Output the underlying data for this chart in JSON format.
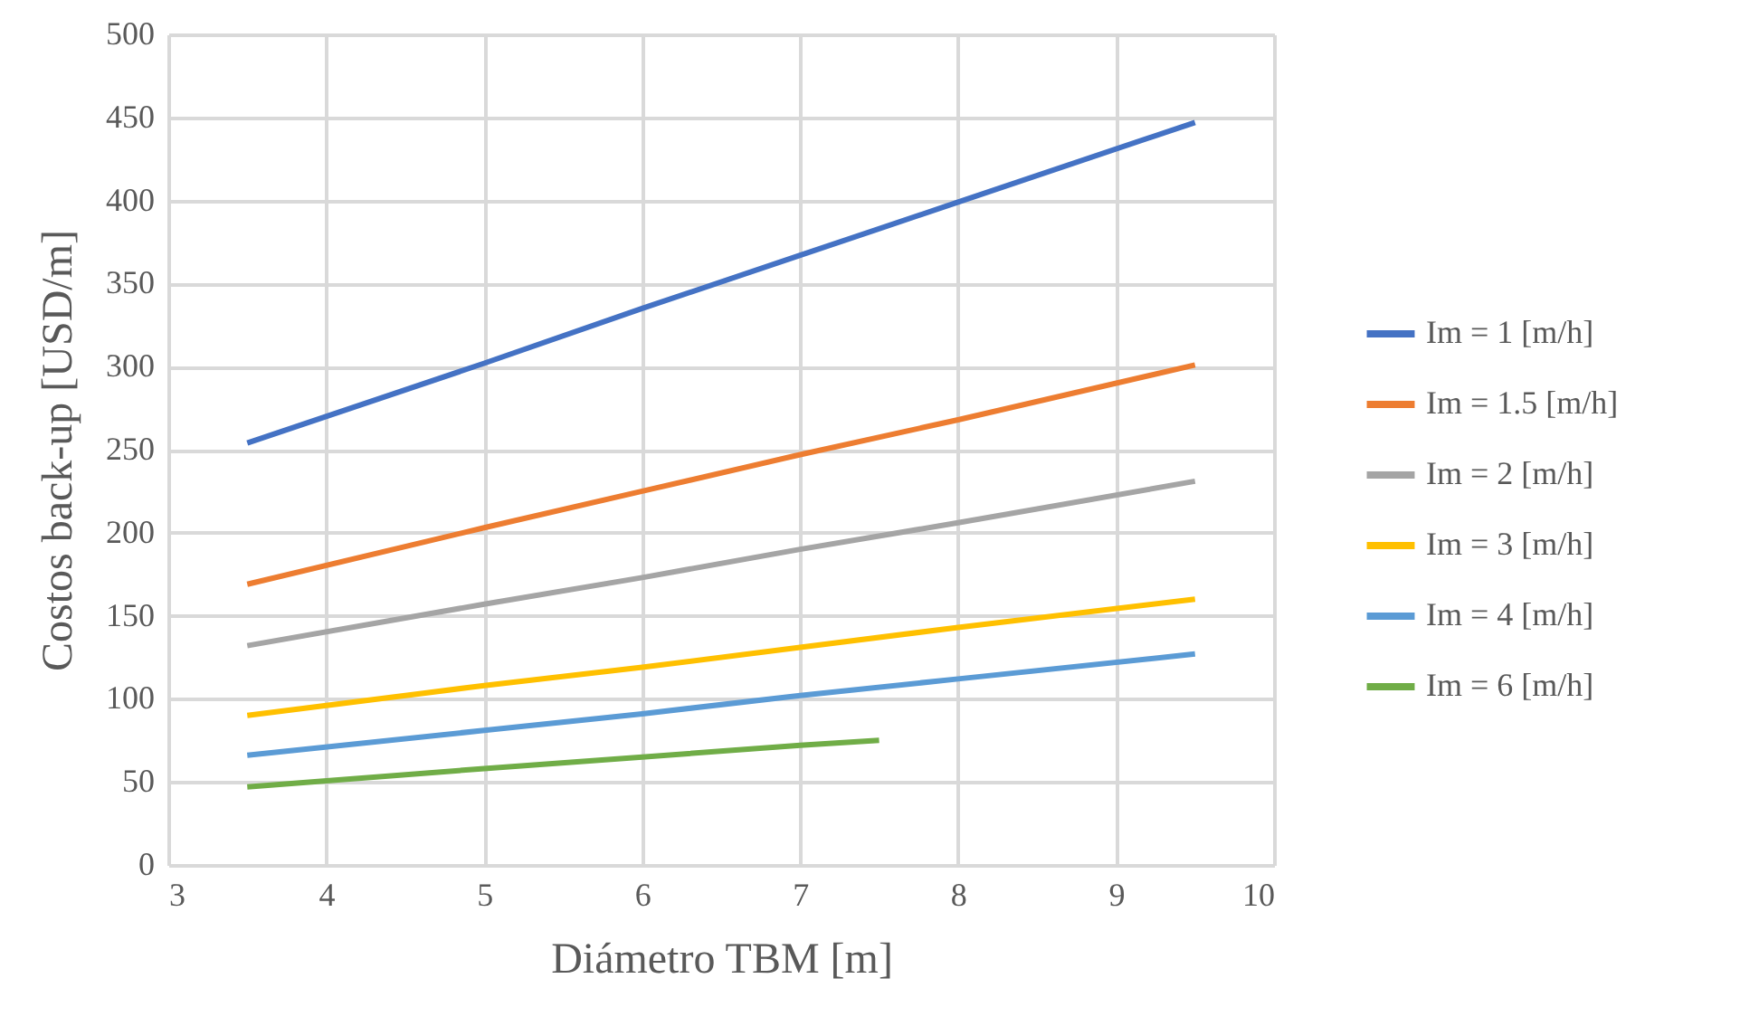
{
  "chart_data": {
    "type": "line",
    "xlabel": "Diámetro TBM [m]",
    "ylabel": "Costos back-up [USD/m]",
    "xlim": [
      3,
      10
    ],
    "xticks": [
      3,
      4,
      5,
      6,
      7,
      8,
      9,
      10
    ],
    "ylim": [
      0,
      500
    ],
    "yticks": [
      0,
      50,
      100,
      150,
      200,
      250,
      300,
      350,
      400,
      450,
      500
    ],
    "grid": true,
    "legend": "right",
    "marker": "none",
    "line_style": "solid",
    "series": [
      {
        "name": "Im = 1 [m/h]",
        "color": "#4472c4",
        "x": [
          3.5,
          5,
          6,
          7,
          8,
          9.5
        ],
        "values": [
          254,
          302,
          335,
          367,
          399,
          447
        ]
      },
      {
        "name": "Im = 1.5 [m/h]",
        "color": "#ed7d31",
        "x": [
          3.5,
          5,
          6,
          7,
          8,
          9.5
        ],
        "values": [
          169,
          203,
          225,
          247,
          268,
          301
        ]
      },
      {
        "name": "Im = 2 [m/h]",
        "color": "#a5a5a5",
        "x": [
          3.5,
          5,
          6,
          7,
          8,
          9.5
        ],
        "values": [
          132,
          157,
          173,
          190,
          206,
          231
        ]
      },
      {
        "name": "Im = 3 [m/h]",
        "color": "#ffc000",
        "x": [
          3.5,
          5,
          6,
          7,
          8,
          9.5
        ],
        "values": [
          90,
          108,
          119,
          131,
          143,
          160
        ]
      },
      {
        "name": "Im = 4 [m/h]",
        "color": "#5b9bd5",
        "x": [
          3.5,
          5,
          6,
          7,
          8,
          9.5
        ],
        "values": [
          66,
          81,
          91,
          102,
          112,
          127
        ]
      },
      {
        "name": "Im = 6 [m/h]",
        "color": "#70ad47",
        "x": [
          3.5,
          5,
          6,
          7,
          7.5
        ],
        "values": [
          47,
          58,
          65,
          72,
          75
        ]
      }
    ]
  }
}
